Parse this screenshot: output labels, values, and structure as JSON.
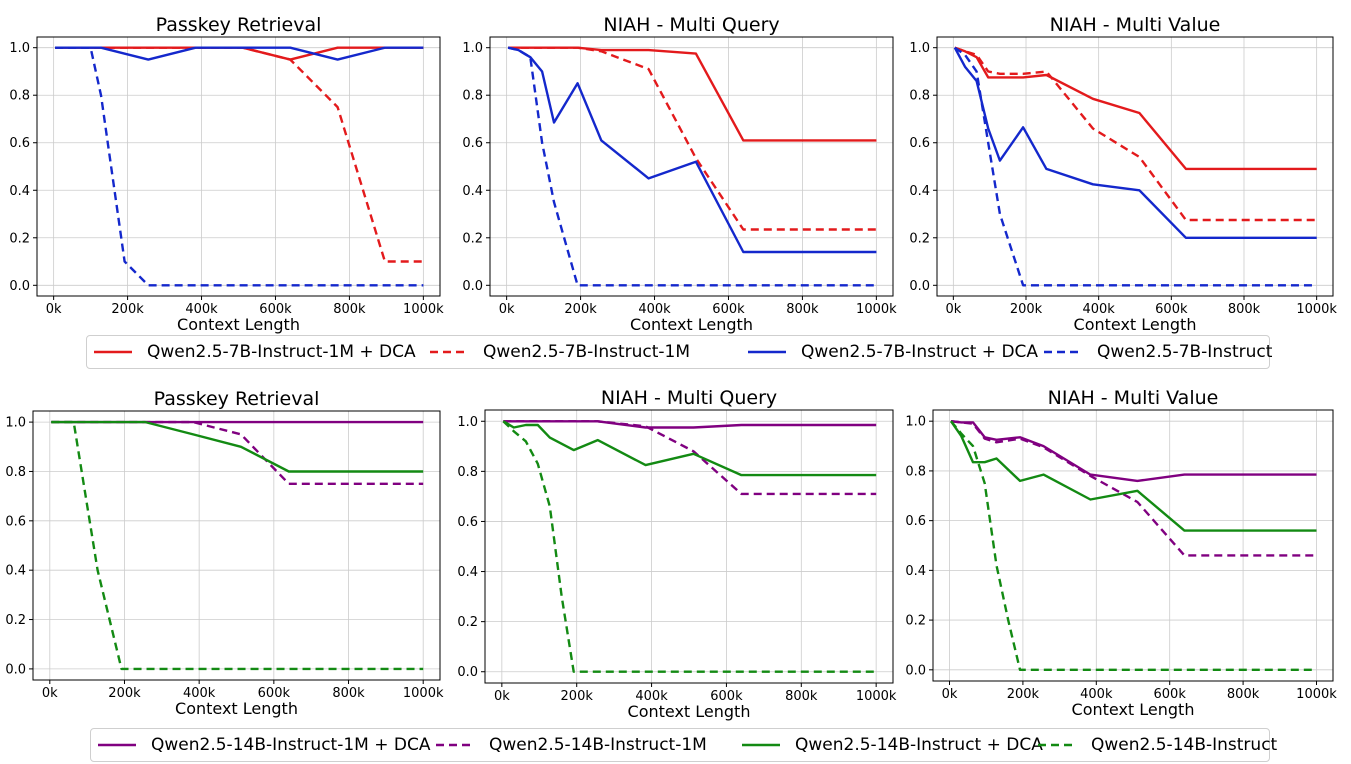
{
  "colors": {
    "top": [
      "#e31a1c",
      "#e31a1c",
      "#1428cc",
      "#1428cc"
    ],
    "bottom": [
      "#800080",
      "#800080",
      "#138a13",
      "#138a13"
    ],
    "grid": "#cccccc"
  },
  "legends": {
    "top": [
      {
        "label": "Qwen2.5-7B-Instruct-1M + DCA",
        "dash": false
      },
      {
        "label": "Qwen2.5-7B-Instruct-1M",
        "dash": true
      },
      {
        "label": "Qwen2.5-7B-Instruct + DCA",
        "dash": false
      },
      {
        "label": "Qwen2.5-7B-Instruct",
        "dash": true
      }
    ],
    "bottom": [
      {
        "label": "Qwen2.5-14B-Instruct-1M + DCA",
        "dash": false
      },
      {
        "label": "Qwen2.5-14B-Instruct-1M",
        "dash": true
      },
      {
        "label": "Qwen2.5-14B-Instruct + DCA",
        "dash": false
      },
      {
        "label": "Qwen2.5-14B-Instruct",
        "dash": true
      }
    ]
  },
  "chart_data": [
    {
      "type": "line",
      "title": "Passkey Retrieval",
      "xlabel": "Context Length",
      "ylabel": "",
      "xlim": [
        0,
        1000000
      ],
      "ylim": [
        0,
        1.0
      ],
      "grid": true,
      "xticks": [
        "0k",
        "200k",
        "400k",
        "600k",
        "800k",
        "1000k"
      ],
      "yticks": [
        "0.0",
        "0.2",
        "0.4",
        "0.6",
        "0.8",
        "1.0"
      ],
      "series": [
        {
          "name": "Qwen2.5-7B-Instruct-1M + DCA",
          "dash": false,
          "x": [
            4000,
            128000,
            256000,
            384000,
            512000,
            640000,
            768000,
            896000,
            1000000
          ],
          "y": [
            1.0,
            1.0,
            1.0,
            1.0,
            1.0,
            0.95,
            1.0,
            1.0,
            1.0
          ]
        },
        {
          "name": "Qwen2.5-7B-Instruct-1M",
          "dash": true,
          "x": [
            4000,
            128000,
            256000,
            384000,
            512000,
            640000,
            768000,
            896000,
            1000000
          ],
          "y": [
            1.0,
            1.0,
            1.0,
            1.0,
            1.0,
            0.95,
            0.75,
            0.1,
            0.1
          ]
        },
        {
          "name": "Qwen2.5-7B-Instruct + DCA",
          "dash": false,
          "x": [
            4000,
            128000,
            256000,
            384000,
            512000,
            640000,
            768000,
            896000,
            1000000
          ],
          "y": [
            1.0,
            1.0,
            0.95,
            1.0,
            1.0,
            1.0,
            0.95,
            1.0,
            1.0
          ]
        },
        {
          "name": "Qwen2.5-7B-Instruct",
          "dash": true,
          "x": [
            4000,
            100000,
            128000,
            192000,
            256000,
            384000,
            512000,
            640000,
            768000,
            896000,
            1000000
          ],
          "y": [
            1.0,
            1.0,
            0.8,
            0.1,
            0.0,
            0.0,
            0.0,
            0.0,
            0.0,
            0.0,
            0.0
          ]
        }
      ]
    },
    {
      "type": "line",
      "title": "NIAH - Multi Query",
      "xlabel": "Context Length",
      "ylabel": "",
      "xlim": [
        0,
        1000000
      ],
      "ylim": [
        0,
        1.0
      ],
      "grid": true,
      "xticks": [
        "0k",
        "200k",
        "400k",
        "600k",
        "800k",
        "1000k"
      ],
      "yticks": [
        "0.0",
        "0.2",
        "0.4",
        "0.6",
        "0.8",
        "1.0"
      ],
      "series": [
        {
          "name": "Qwen2.5-7B-Instruct-1M + DCA",
          "dash": false,
          "x": [
            4000,
            128000,
            192000,
            256000,
            384000,
            512000,
            640000,
            768000,
            896000,
            1000000
          ],
          "y": [
            1.0,
            1.0,
            1.0,
            0.99,
            0.99,
            0.975,
            0.61,
            0.61,
            0.61,
            0.61
          ]
        },
        {
          "name": "Qwen2.5-7B-Instruct-1M",
          "dash": true,
          "x": [
            4000,
            128000,
            192000,
            256000,
            384000,
            512000,
            640000,
            768000,
            896000,
            1000000
          ],
          "y": [
            1.0,
            1.0,
            1.0,
            0.985,
            0.91,
            0.535,
            0.235,
            0.235,
            0.235,
            0.235
          ]
        },
        {
          "name": "Qwen2.5-7B-Instruct + DCA",
          "dash": false,
          "x": [
            4000,
            32000,
            64000,
            96000,
            128000,
            192000,
            256000,
            384000,
            512000,
            640000,
            768000,
            896000,
            1000000
          ],
          "y": [
            1.0,
            0.99,
            0.96,
            0.9,
            0.685,
            0.85,
            0.61,
            0.45,
            0.52,
            0.14,
            0.14,
            0.14,
            0.14
          ]
        },
        {
          "name": "Qwen2.5-7B-Instruct",
          "dash": true,
          "x": [
            4000,
            32000,
            64000,
            96000,
            128000,
            192000,
            256000,
            384000,
            512000,
            640000,
            768000,
            896000,
            1000000
          ],
          "y": [
            1.0,
            0.99,
            0.96,
            0.6,
            0.35,
            0.0,
            0.0,
            0.0,
            0.0,
            0.0,
            0.0,
            0.0,
            0.0
          ]
        }
      ]
    },
    {
      "type": "line",
      "title": "NIAH - Multi Value",
      "xlabel": "Context Length",
      "ylabel": "",
      "xlim": [
        0,
        1000000
      ],
      "ylim": [
        0,
        1.0
      ],
      "grid": true,
      "xticks": [
        "0k",
        "200k",
        "400k",
        "600k",
        "800k",
        "1000k"
      ],
      "yticks": [
        "0.0",
        "0.2",
        "0.4",
        "0.6",
        "0.8",
        "1.0"
      ],
      "series": [
        {
          "name": "Qwen2.5-7B-Instruct-1M + DCA",
          "dash": false,
          "x": [
            4000,
            32000,
            64000,
            96000,
            128000,
            192000,
            256000,
            384000,
            512000,
            640000,
            768000,
            896000,
            1000000
          ],
          "y": [
            1.0,
            0.985,
            0.96,
            0.875,
            0.875,
            0.875,
            0.885,
            0.785,
            0.725,
            0.49,
            0.49,
            0.49,
            0.49
          ]
        },
        {
          "name": "Qwen2.5-7B-Instruct-1M",
          "dash": true,
          "x": [
            4000,
            32000,
            64000,
            96000,
            128000,
            192000,
            256000,
            384000,
            512000,
            640000,
            768000,
            896000,
            1000000
          ],
          "y": [
            1.0,
            0.985,
            0.97,
            0.9,
            0.89,
            0.89,
            0.9,
            0.66,
            0.54,
            0.275,
            0.275,
            0.275,
            0.275
          ]
        },
        {
          "name": "Qwen2.5-7B-Instruct + DCA",
          "dash": false,
          "x": [
            4000,
            32000,
            64000,
            96000,
            128000,
            192000,
            256000,
            384000,
            512000,
            640000,
            768000,
            896000,
            1000000
          ],
          "y": [
            1.0,
            0.92,
            0.86,
            0.66,
            0.525,
            0.665,
            0.49,
            0.425,
            0.4,
            0.2,
            0.2,
            0.2,
            0.2
          ]
        },
        {
          "name": "Qwen2.5-7B-Instruct",
          "dash": true,
          "x": [
            4000,
            32000,
            64000,
            96000,
            128000,
            192000,
            256000,
            384000,
            512000,
            640000,
            768000,
            896000,
            1000000
          ],
          "y": [
            1.0,
            0.97,
            0.9,
            0.6,
            0.3,
            0.0,
            0.0,
            0.0,
            0.0,
            0.0,
            0.0,
            0.0,
            0.0
          ]
        }
      ]
    },
    {
      "type": "line",
      "title": "Passkey Retrieval",
      "xlabel": "Context Length",
      "ylabel": "",
      "xlim": [
        0,
        1000000
      ],
      "ylim": [
        0,
        1.0
      ],
      "grid": true,
      "xticks": [
        "0k",
        "200k",
        "400k",
        "600k",
        "800k",
        "1000k"
      ],
      "yticks": [
        "0.0",
        "0.2",
        "0.4",
        "0.6",
        "0.8",
        "1.0"
      ],
      "series": [
        {
          "name": "Qwen2.5-14B-Instruct-1M + DCA",
          "dash": false,
          "x": [
            4000,
            128000,
            256000,
            384000,
            512000,
            640000,
            768000,
            896000,
            1000000
          ],
          "y": [
            1.0,
            1.0,
            1.0,
            1.0,
            1.0,
            1.0,
            1.0,
            1.0,
            1.0
          ]
        },
        {
          "name": "Qwen2.5-14B-Instruct-1M",
          "dash": true,
          "x": [
            4000,
            128000,
            256000,
            384000,
            512000,
            640000,
            768000,
            896000,
            1000000
          ],
          "y": [
            1.0,
            1.0,
            1.0,
            1.0,
            0.95,
            0.75,
            0.75,
            0.75,
            0.75
          ]
        },
        {
          "name": "Qwen2.5-14B-Instruct + DCA",
          "dash": false,
          "x": [
            4000,
            128000,
            256000,
            384000,
            512000,
            640000,
            768000,
            896000,
            1000000
          ],
          "y": [
            1.0,
            1.0,
            1.0,
            0.95,
            0.9,
            0.8,
            0.8,
            0.8,
            0.8
          ]
        },
        {
          "name": "Qwen2.5-14B-Instruct",
          "dash": true,
          "x": [
            4000,
            64000,
            128000,
            192000,
            256000,
            384000,
            512000,
            640000,
            768000,
            896000,
            1000000
          ],
          "y": [
            1.0,
            1.0,
            0.4,
            0.0,
            0.0,
            0.0,
            0.0,
            0.0,
            0.0,
            0.0,
            0.0
          ]
        }
      ]
    },
    {
      "type": "line",
      "title": "NIAH - Multi Query",
      "xlabel": "Context Length",
      "ylabel": "",
      "xlim": [
        0,
        1000000
      ],
      "ylim": [
        0,
        1.0
      ],
      "grid": true,
      "xticks": [
        "0k",
        "200k",
        "400k",
        "600k",
        "800k",
        "1000k"
      ],
      "yticks": [
        "0.0",
        "0.2",
        "0.4",
        "0.6",
        "0.8",
        "1.0"
      ],
      "series": [
        {
          "name": "Qwen2.5-14B-Instruct-1M + DCA",
          "dash": false,
          "x": [
            4000,
            128000,
            256000,
            384000,
            512000,
            640000,
            768000,
            896000,
            1000000
          ],
          "y": [
            1.0,
            1.0,
            1.0,
            0.975,
            0.975,
            0.985,
            0.985,
            0.985,
            0.985
          ]
        },
        {
          "name": "Qwen2.5-14B-Instruct-1M",
          "dash": true,
          "x": [
            4000,
            128000,
            256000,
            384000,
            512000,
            640000,
            768000,
            896000,
            1000000
          ],
          "y": [
            1.0,
            1.0,
            1.0,
            0.98,
            0.88,
            0.71,
            0.71,
            0.71,
            0.71
          ]
        },
        {
          "name": "Qwen2.5-14B-Instruct + DCA",
          "dash": false,
          "x": [
            4000,
            32000,
            64000,
            96000,
            128000,
            192000,
            256000,
            384000,
            512000,
            640000,
            768000,
            896000,
            1000000
          ],
          "y": [
            1.0,
            0.975,
            0.985,
            0.985,
            0.935,
            0.885,
            0.925,
            0.825,
            0.87,
            0.785,
            0.785,
            0.785,
            0.785
          ]
        },
        {
          "name": "Qwen2.5-14B-Instruct",
          "dash": true,
          "x": [
            4000,
            32000,
            64000,
            96000,
            128000,
            160000,
            192000,
            256000,
            384000,
            512000,
            640000,
            768000,
            896000,
            1000000
          ],
          "y": [
            1.0,
            0.96,
            0.92,
            0.83,
            0.66,
            0.3,
            0.0,
            0.0,
            0.0,
            0.0,
            0.0,
            0.0,
            0.0,
            0.0
          ]
        }
      ]
    },
    {
      "type": "line",
      "title": "NIAH - Multi Value",
      "xlabel": "Context Length",
      "ylabel": "",
      "xlim": [
        0,
        1000000
      ],
      "ylim": [
        0,
        1.0
      ],
      "grid": true,
      "xticks": [
        "0k",
        "200k",
        "400k",
        "600k",
        "800k",
        "1000k"
      ],
      "yticks": [
        "0.0",
        "0.2",
        "0.4",
        "0.6",
        "0.8",
        "1.0"
      ],
      "series": [
        {
          "name": "Qwen2.5-14B-Instruct-1M + DCA",
          "dash": false,
          "x": [
            4000,
            32000,
            64000,
            96000,
            128000,
            192000,
            256000,
            384000,
            512000,
            640000,
            768000,
            896000,
            1000000
          ],
          "y": [
            1.0,
            0.995,
            0.995,
            0.935,
            0.925,
            0.935,
            0.9,
            0.785,
            0.76,
            0.785,
            0.785,
            0.785,
            0.785
          ]
        },
        {
          "name": "Qwen2.5-14B-Instruct-1M",
          "dash": true,
          "x": [
            4000,
            32000,
            64000,
            96000,
            128000,
            192000,
            256000,
            384000,
            512000,
            640000,
            768000,
            896000,
            1000000
          ],
          "y": [
            1.0,
            0.995,
            0.99,
            0.93,
            0.915,
            0.93,
            0.895,
            0.78,
            0.675,
            0.46,
            0.46,
            0.46,
            0.46
          ]
        },
        {
          "name": "Qwen2.5-14B-Instruct + DCA",
          "dash": false,
          "x": [
            4000,
            32000,
            64000,
            96000,
            128000,
            192000,
            256000,
            384000,
            512000,
            640000,
            768000,
            896000,
            1000000
          ],
          "y": [
            1.0,
            0.94,
            0.835,
            0.835,
            0.85,
            0.76,
            0.785,
            0.685,
            0.72,
            0.56,
            0.56,
            0.56,
            0.56
          ]
        },
        {
          "name": "Qwen2.5-14B-Instruct",
          "dash": true,
          "x": [
            4000,
            32000,
            64000,
            96000,
            128000,
            160000,
            192000,
            256000,
            384000,
            512000,
            640000,
            768000,
            896000,
            1000000
          ],
          "y": [
            1.0,
            0.95,
            0.9,
            0.75,
            0.42,
            0.2,
            0.0,
            0.0,
            0.0,
            0.0,
            0.0,
            0.0,
            0.0,
            0.0
          ]
        }
      ]
    }
  ]
}
